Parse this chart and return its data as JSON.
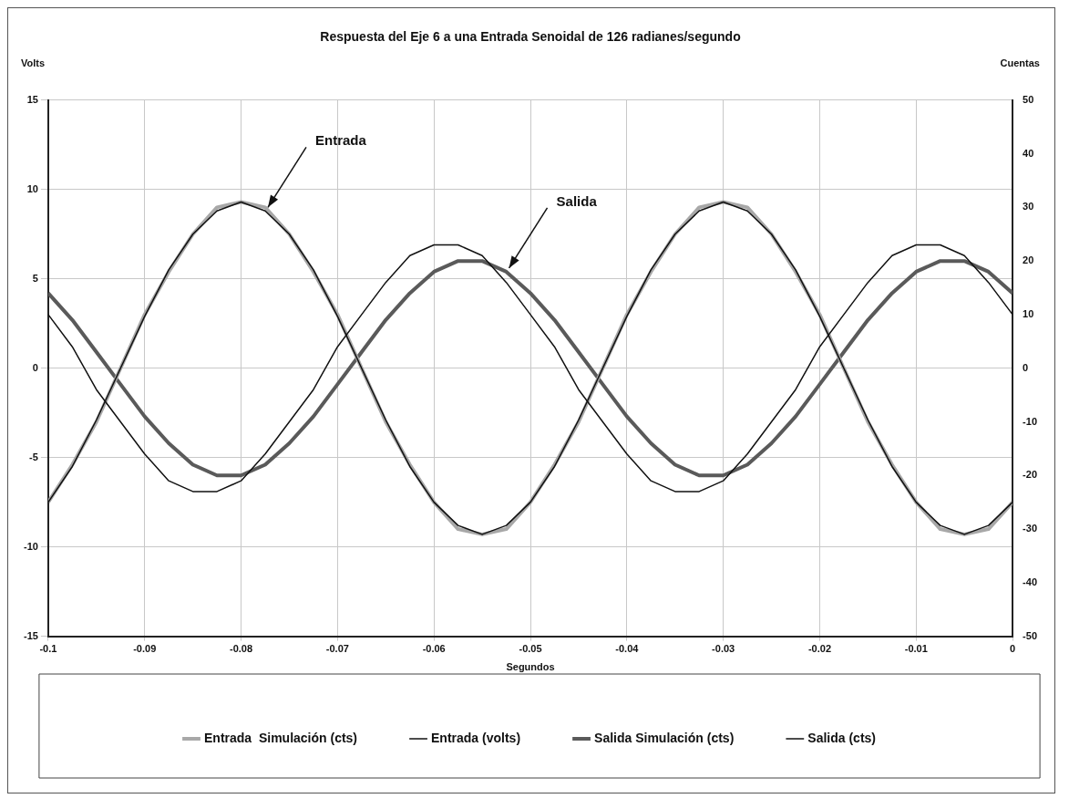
{
  "chart_data": {
    "type": "line",
    "title": "Respuesta del Eje 6 a una Entrada Senoidal de 126 radianes/segundo",
    "xlabel": "Segundos",
    "ylabel": "Volts",
    "y2label": "Cuentas",
    "x": [
      -0.1,
      -0.0975,
      -0.095,
      -0.0925,
      -0.09,
      -0.0875,
      -0.085,
      -0.0825,
      -0.08,
      -0.0775,
      -0.075,
      -0.0725,
      -0.07,
      -0.0675,
      -0.065,
      -0.0625,
      -0.06,
      -0.0575,
      -0.055,
      -0.0525,
      -0.05,
      -0.0475,
      -0.045,
      -0.0425,
      -0.04,
      -0.0375,
      -0.035,
      -0.0325,
      -0.03,
      -0.0275,
      -0.025,
      -0.0225,
      -0.02,
      -0.0175,
      -0.015,
      -0.0125,
      -0.01,
      -0.0075,
      -0.005,
      -0.0025,
      0
    ],
    "series": [
      {
        "name": "Entrada  Simulación (cts)",
        "color": "#a8a8a8",
        "axis": "y2",
        "values": [
          -25,
          -18,
          -10,
          0,
          10,
          18,
          25,
          30,
          31,
          30,
          25,
          18,
          10,
          0,
          -10,
          -18,
          -25,
          -30,
          -31,
          -30,
          -25,
          -18,
          -10,
          0,
          10,
          18,
          25,
          30,
          31,
          30,
          25,
          18,
          10,
          0,
          -10,
          -18,
          -25,
          -30,
          -31,
          -30,
          -25
        ]
      },
      {
        "name": "Entrada (volts)",
        "color": "#111111",
        "values": [
          -7.5,
          -5.5,
          -2.9,
          0,
          2.9,
          5.5,
          7.5,
          8.8,
          9.3,
          8.8,
          7.5,
          5.5,
          2.9,
          0,
          -2.9,
          -5.5,
          -7.5,
          -8.8,
          -9.3,
          -8.8,
          -7.5,
          -5.5,
          -2.9,
          0,
          2.9,
          5.5,
          7.5,
          8.8,
          9.3,
          8.8,
          7.5,
          5.5,
          2.9,
          0,
          -2.9,
          -5.5,
          -7.5,
          -8.8,
          -9.3,
          -8.8,
          -7.5
        ]
      },
      {
        "name": "Salida Simulación (cts)",
        "color": "#5a5a5a",
        "axis": "y2",
        "values": [
          14,
          9,
          3,
          -3,
          -9,
          -14,
          -18,
          -20,
          -20,
          -18,
          -14,
          -9,
          -3,
          3,
          9,
          14,
          18,
          20,
          20,
          18,
          14,
          9,
          3,
          -3,
          -9,
          -14,
          -18,
          -20,
          -20,
          -18,
          -14,
          -9,
          -3,
          3,
          9,
          14,
          18,
          20,
          20,
          18,
          14
        ]
      },
      {
        "name": "Salida (cts)",
        "color": "#111111",
        "axis": "y2",
        "values": [
          10,
          4,
          -4,
          -10,
          -16,
          -21,
          -23,
          -23,
          -21,
          -16,
          -10,
          -4,
          4,
          10,
          16,
          21,
          23,
          23,
          21,
          16,
          10,
          4,
          -4,
          -10,
          -16,
          -21,
          -23,
          -23,
          -21,
          -16,
          -10,
          -4,
          4,
          10,
          16,
          21,
          23,
          23,
          21,
          16,
          10
        ]
      }
    ],
    "xlim": [
      -0.1,
      0
    ],
    "xticks": [
      -0.1,
      -0.09,
      -0.08,
      -0.07,
      -0.06,
      -0.05,
      -0.04,
      -0.03,
      -0.02,
      -0.01,
      0
    ],
    "ylim": [
      -15,
      15
    ],
    "yticks": [
      -15,
      -10,
      -5,
      0,
      5,
      10,
      15
    ],
    "y2lim": [
      -50,
      50
    ],
    "y2ticks": [
      -50,
      -40,
      -30,
      -20,
      -10,
      0,
      10,
      20,
      30,
      40,
      50
    ],
    "annotations": [
      {
        "text": "Entrada",
        "x": -0.0775,
        "y": 8.8
      },
      {
        "text": "Salida",
        "x": -0.0525,
        "y": 5.4
      }
    ],
    "grid": true,
    "legend": "bottom",
    "marker": "none"
  }
}
